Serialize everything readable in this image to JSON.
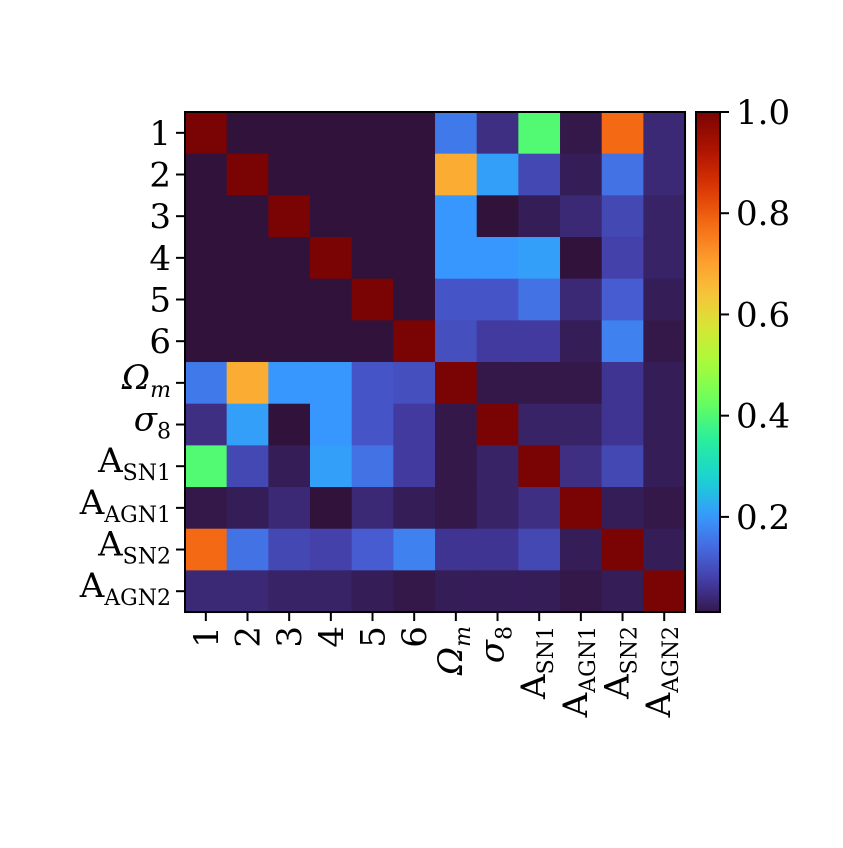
{
  "chart_data": {
    "type": "heatmap",
    "title": "",
    "xlabel": "",
    "ylabel": "",
    "labels": [
      {
        "main": "1",
        "sub": ""
      },
      {
        "main": "2",
        "sub": ""
      },
      {
        "main": "3",
        "sub": ""
      },
      {
        "main": "4",
        "sub": ""
      },
      {
        "main": "5",
        "sub": ""
      },
      {
        "main": "6",
        "sub": ""
      },
      {
        "main": "Ω",
        "sub": "m"
      },
      {
        "main": "σ",
        "sub": "8"
      },
      {
        "main": "A",
        "sub": "SN1"
      },
      {
        "main": "A",
        "sub": "AGN1"
      },
      {
        "main": "A",
        "sub": "SN2"
      },
      {
        "main": "A",
        "sub": "AGN2"
      }
    ],
    "values": [
      [
        1.0,
        0.0,
        0.0,
        0.0,
        0.0,
        0.0,
        0.16,
        0.05,
        0.4,
        0.01,
        0.78,
        0.04
      ],
      [
        0.0,
        1.0,
        0.0,
        0.0,
        0.0,
        0.0,
        0.68,
        0.21,
        0.09,
        0.02,
        0.15,
        0.04
      ],
      [
        0.0,
        0.0,
        1.0,
        0.0,
        0.0,
        0.0,
        0.2,
        0.0,
        0.02,
        0.04,
        0.09,
        0.03
      ],
      [
        0.0,
        0.0,
        0.0,
        1.0,
        0.0,
        0.0,
        0.2,
        0.2,
        0.21,
        0.0,
        0.08,
        0.03
      ],
      [
        0.0,
        0.0,
        0.0,
        0.0,
        1.0,
        0.0,
        0.11,
        0.11,
        0.15,
        0.04,
        0.12,
        0.02
      ],
      [
        0.0,
        0.0,
        0.0,
        0.0,
        0.0,
        1.0,
        0.1,
        0.07,
        0.07,
        0.02,
        0.17,
        0.01
      ],
      [
        0.16,
        0.68,
        0.2,
        0.2,
        0.11,
        0.1,
        1.0,
        0.01,
        0.01,
        0.01,
        0.06,
        0.02
      ],
      [
        0.05,
        0.21,
        0.0,
        0.2,
        0.11,
        0.07,
        0.01,
        1.0,
        0.03,
        0.03,
        0.06,
        0.02
      ],
      [
        0.4,
        0.09,
        0.02,
        0.21,
        0.15,
        0.07,
        0.01,
        0.03,
        1.0,
        0.05,
        0.09,
        0.02
      ],
      [
        0.01,
        0.02,
        0.04,
        0.0,
        0.04,
        0.02,
        0.01,
        0.03,
        0.05,
        1.0,
        0.02,
        0.01
      ],
      [
        0.78,
        0.15,
        0.09,
        0.08,
        0.12,
        0.17,
        0.06,
        0.06,
        0.09,
        0.02,
        1.0,
        0.02
      ],
      [
        0.04,
        0.04,
        0.03,
        0.03,
        0.02,
        0.01,
        0.02,
        0.02,
        0.02,
        0.01,
        0.02,
        1.0
      ]
    ],
    "colormap": "turbo",
    "vmin": 0.0,
    "vmax": 1.0,
    "colorbar": {
      "ticks": [
        0.2,
        0.4,
        0.6,
        0.8,
        1.0
      ],
      "tick_labels": [
        "0.2",
        "0.4",
        "0.6",
        "0.8",
        "1.0"
      ],
      "placement": "right"
    },
    "grid": false
  }
}
